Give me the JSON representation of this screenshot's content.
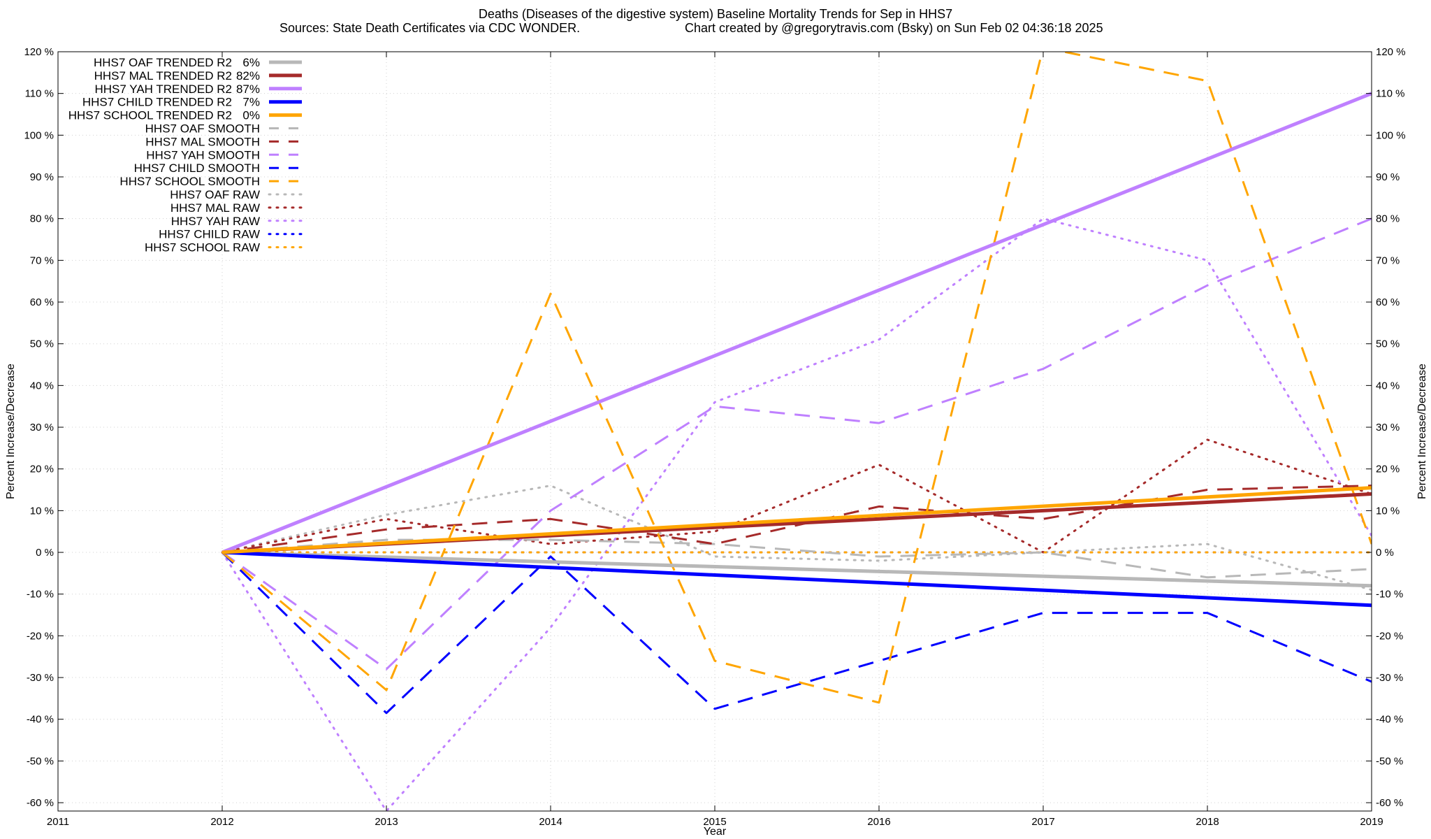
{
  "chart_data": {
    "type": "line",
    "title": "Deaths (Diseases of the digestive system)  Baseline Mortality Trends for Sep in HHS7",
    "subtitle_left": "Sources: State Death Certificates via CDC WONDER.",
    "subtitle_right": "Chart created by @gregorytravis.com (Bsky) on Sun Feb 02 04:36:18 2025",
    "xlabel": "Year",
    "ylabel": "Percent Increase/Decrease",
    "xlim": [
      2011,
      2019
    ],
    "ylim": [
      -62,
      120
    ],
    "x_ticks": [
      2011,
      2012,
      2013,
      2014,
      2015,
      2016,
      2017,
      2018,
      2019
    ],
    "x_tick_labels": [
      "2011",
      "2012",
      "2013",
      "2014",
      "2015",
      "2016",
      "2017",
      "2018",
      "2019"
    ],
    "y_ticks": [
      -60,
      -50,
      -40,
      -30,
      -20,
      -10,
      0,
      10,
      20,
      30,
      40,
      50,
      60,
      70,
      80,
      90,
      100,
      110,
      120
    ],
    "y_tick_labels": [
      "-60 %",
      "-50 %",
      "-40 %",
      "-30 %",
      "-20 %",
      "-10 %",
      "0 %",
      "10 %",
      "20 %",
      "30 %",
      "40 %",
      "50 %",
      "60 %",
      "70 %",
      "80 %",
      "90 %",
      "100 %",
      "110 %",
      "120 %"
    ],
    "grid": true,
    "legend_position": "top-left",
    "series": [
      {
        "name": "HHS7 OAF TRENDED R2",
        "r2": "6%",
        "style": "solid",
        "color": "#b8b8b8",
        "x": [
          2012,
          2019
        ],
        "values": [
          0,
          -8
        ]
      },
      {
        "name": "HHS7 MAL TRENDED R2",
        "r2": "82%",
        "style": "solid",
        "color": "#a52a2a",
        "x": [
          2012,
          2019
        ],
        "values": [
          0,
          14
        ]
      },
      {
        "name": "HHS7 YAH TRENDED R2",
        "r2": "87%",
        "style": "solid",
        "color": "#bf80ff",
        "x": [
          2012,
          2019
        ],
        "values": [
          0,
          110
        ]
      },
      {
        "name": "HHS7 CHILD TRENDED R2",
        "r2": "7%",
        "style": "solid",
        "color": "#0000ff",
        "x": [
          2012,
          2019
        ],
        "values": [
          0,
          -12.7
        ]
      },
      {
        "name": "HHS7 SCHOOL TRENDED R2",
        "r2": "0%",
        "style": "solid",
        "color": "#ffa500",
        "x": [
          2012,
          2019
        ],
        "values": [
          0,
          15.5
        ]
      },
      {
        "name": "HHS7 OAF SMOOTH",
        "style": "dashed",
        "color": "#b8b8b8",
        "x": [
          2012,
          2013,
          2014,
          2015,
          2016,
          2017,
          2018,
          2019
        ],
        "values": [
          0,
          3,
          3,
          2,
          -1,
          0,
          -6,
          -4
        ]
      },
      {
        "name": "HHS7 MAL SMOOTH",
        "style": "dashed",
        "color": "#a52a2a",
        "x": [
          2012,
          2013,
          2014,
          2015,
          2016,
          2017,
          2018,
          2019
        ],
        "values": [
          0,
          5.5,
          8,
          2,
          11,
          8,
          15,
          16
        ]
      },
      {
        "name": "HHS7 YAH SMOOTH",
        "style": "dashed",
        "color": "#bf80ff",
        "x": [
          2012,
          2013,
          2014,
          2015,
          2016,
          2017,
          2018,
          2019
        ],
        "values": [
          0,
          -28,
          10,
          35,
          31,
          44,
          64,
          80
        ]
      },
      {
        "name": "HHS7 CHILD SMOOTH",
        "style": "dashed",
        "color": "#0000ff",
        "x": [
          2012,
          2013,
          2014,
          2015,
          2016,
          2017,
          2018,
          2019
        ],
        "values": [
          0,
          -38.5,
          -1,
          -37.5,
          -26,
          -14.5,
          -14.5,
          -31
        ]
      },
      {
        "name": "HHS7 SCHOOL SMOOTH",
        "style": "dashed",
        "color": "#ffa500",
        "x": [
          2012,
          2013,
          2014,
          2015,
          2016,
          2017,
          2018,
          2019
        ],
        "values": [
          0,
          -33,
          62,
          -26,
          -36,
          121,
          113,
          2
        ]
      },
      {
        "name": "HHS7 OAF RAW",
        "style": "dotted",
        "color": "#b8b8b8",
        "x": [
          2012,
          2013,
          2014,
          2015,
          2016,
          2017,
          2018,
          2019
        ],
        "values": [
          0,
          9,
          16,
          -1,
          -2,
          0,
          2,
          -9
        ]
      },
      {
        "name": "HHS7 MAL RAW",
        "style": "dotted",
        "color": "#a52a2a",
        "x": [
          2012,
          2013,
          2014,
          2015,
          2016,
          2017,
          2018,
          2019
        ],
        "values": [
          0,
          8,
          2,
          5,
          21,
          0,
          27,
          14
        ]
      },
      {
        "name": "HHS7 YAH RAW",
        "style": "dotted",
        "color": "#bf80ff",
        "x": [
          2012,
          2013,
          2014,
          2015,
          2016,
          2017,
          2018,
          2019
        ],
        "values": [
          0,
          -62,
          -18,
          36,
          51,
          80,
          70,
          4
        ]
      },
      {
        "name": "HHS7 CHILD RAW",
        "style": "dotted",
        "color": "#0000ff",
        "x": [
          2012,
          2013,
          2014,
          2015,
          2016,
          2017,
          2018,
          2019
        ],
        "values": [
          0,
          0,
          0,
          0,
          0,
          0,
          0,
          0
        ]
      },
      {
        "name": "HHS7 SCHOOL RAW",
        "style": "dotted",
        "color": "#ffa500",
        "x": [
          2012,
          2013,
          2014,
          2015,
          2016,
          2017,
          2018,
          2019
        ],
        "values": [
          0,
          0,
          0,
          0,
          0,
          0,
          0,
          0
        ]
      }
    ]
  }
}
